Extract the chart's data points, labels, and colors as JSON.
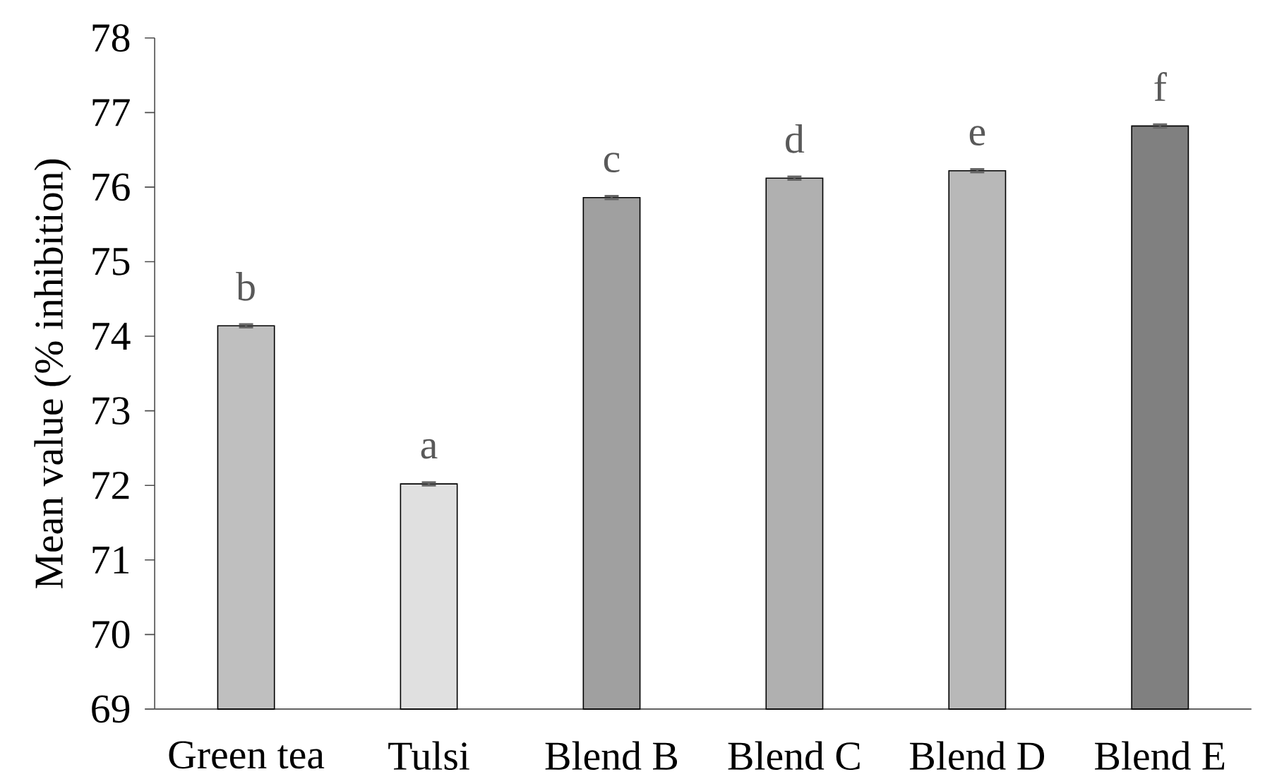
{
  "chart_data": {
    "type": "bar",
    "ylabel": "Mean value (% inhibition)",
    "categories": [
      "Green tea",
      "Tulsi",
      "Blend B",
      "Blend C",
      "Blend D",
      "Blend E"
    ],
    "values": [
      74.14,
      72.02,
      75.86,
      76.12,
      76.22,
      76.82
    ],
    "errors": [
      0.02,
      0.02,
      0.02,
      0.02,
      0.02,
      0.02
    ],
    "colors": [
      "#bfbfbf",
      "#e0e0e0",
      "#a0a0a0",
      "#b0b0b0",
      "#b8b8b8",
      "#808080"
    ],
    "ylim": [
      69,
      78
    ],
    "yticks": [
      69,
      70,
      71,
      72,
      73,
      74,
      75,
      76,
      77,
      78
    ],
    "grid": false,
    "annotations": [
      {
        "text": "b",
        "x": "Green tea",
        "y": 74.14
      },
      {
        "text": "a",
        "x": "Tulsi",
        "y": 72.02
      },
      {
        "text": "c",
        "x": "Blend B",
        "y": 75.86
      },
      {
        "text": "d",
        "x": "Blend C",
        "y": 76.12
      },
      {
        "text": "e",
        "x": "Blend D",
        "y": 76.22
      },
      {
        "text": "f",
        "x": "Blend E",
        "y": 76.82
      }
    ]
  }
}
